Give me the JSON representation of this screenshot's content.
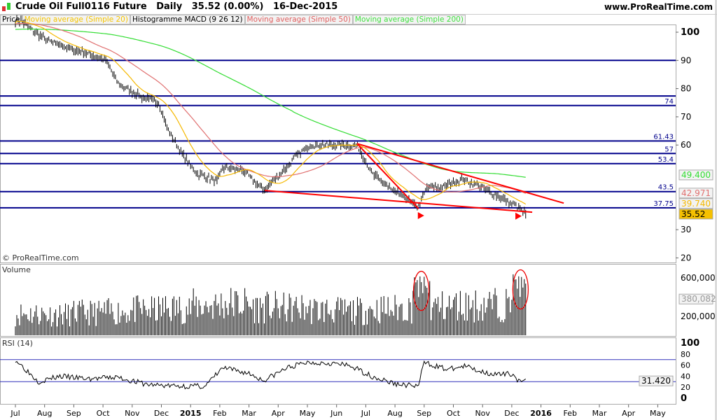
{
  "header": {
    "title": "Crude Oil Full0116 Future",
    "period": "Daily",
    "price": "35.52 (0.00%)",
    "date": "16-Dec-2015",
    "site": "www.ProRealTime.com"
  },
  "legend": [
    {
      "label": "Price",
      "color": "#000000"
    },
    {
      "label": "Moving average (Simple 20)",
      "color": "#f5c400"
    },
    {
      "label": "Histogramme MACD (9 26 12)",
      "color": "#000000"
    },
    {
      "label": "Moving average (Simple 50)",
      "color": "#e06060"
    },
    {
      "label": "Moving average (Simple 200)",
      "color": "#40e040"
    }
  ],
  "copyright": "© ProRealTime.com",
  "panels": {
    "volume": "Volume",
    "rsi": "RSI (14)"
  },
  "chart_data": [
    {
      "type": "line",
      "name": "price",
      "title": "Crude Oil Full0116 Future Daily",
      "x_unit": "months since Jul 2014",
      "x": [
        0.2,
        0.4,
        1.1,
        1.9,
        2.6,
        3.1,
        3.5,
        4.3,
        4.9,
        5.2,
        5.7,
        6.2,
        6.9,
        7.1,
        7.8,
        8.5,
        9.1,
        9.6,
        10.1,
        10.8,
        11.7,
        12.2,
        12.9,
        13.8,
        14.1,
        14.6,
        15.3,
        15.8,
        16.3,
        16.7,
        17.2,
        17.5
      ],
      "y": [
        104,
        102,
        97,
        94,
        92,
        90,
        82,
        77,
        75,
        66,
        57,
        50,
        47,
        52,
        51,
        44,
        50,
        56,
        60,
        60,
        60,
        50,
        44,
        38,
        45,
        45,
        48,
        46,
        43,
        41,
        38,
        35.52
      ],
      "yticks": [
        20,
        30,
        60,
        70,
        80,
        90,
        100
      ],
      "ylim": [
        17,
        106
      ],
      "hlines": [
        {
          "value": 90,
          "label": ""
        },
        {
          "value": 77.4,
          "label": ""
        },
        {
          "value": 74,
          "label": "74"
        },
        {
          "value": 61.43,
          "label": "61.43"
        },
        {
          "value": 57,
          "label": "57"
        },
        {
          "value": 53.4,
          "label": "53.4"
        },
        {
          "value": 43.5,
          "label": "43.5"
        },
        {
          "value": 37.75,
          "label": "37.75"
        }
      ],
      "trendlines": [
        [
          [
            11.7,
            60.5
          ],
          [
            18.78,
            39.4
          ]
        ],
        [
          [
            8.54,
            43.9
          ],
          [
            17.7,
            36.2
          ]
        ],
        [
          [
            11.7,
            60.5
          ],
          [
            13.81,
            37.4
          ]
        ]
      ],
      "arrows": [
        [
          13.88,
          35.0
        ],
        [
          17.22,
          34.8
        ]
      ],
      "last_values": {
        "ma200": "49.400",
        "ma50": "42.971",
        "ma20": "39.740",
        "price": "35.52"
      }
    },
    {
      "type": "bar",
      "name": "volume",
      "monthly_avg": [
        240000,
        230000,
        250000,
        260000,
        280000,
        300000,
        330000,
        350000,
        310000,
        300000,
        280000,
        270000,
        290000,
        300000,
        320000,
        330000,
        340000,
        360000
      ],
      "spikes": [
        {
          "x": 13.9,
          "value": 620000
        },
        {
          "x": 17.3,
          "value": 640000
        }
      ],
      "yticks": [
        "200,000",
        "600,000"
      ],
      "last": "380,082",
      "ylim": [
        0,
        720000
      ]
    },
    {
      "type": "line",
      "name": "rsi",
      "x": [
        0,
        0.8,
        1.5,
        2.5,
        3.5,
        4.5,
        5.5,
        6.5,
        7.1,
        8,
        8.5,
        9.3,
        10,
        10.8,
        11.5,
        12.2,
        13,
        13.8,
        14,
        14.8,
        15.4,
        16,
        16.6,
        17,
        17.3,
        17.5
      ],
      "y": [
        70,
        30,
        40,
        35,
        38,
        25,
        22,
        22,
        55,
        45,
        32,
        55,
        65,
        64,
        58,
        40,
        26,
        22,
        65,
        52,
        58,
        48,
        42,
        45,
        28,
        31.42
      ],
      "yticks": [
        "0",
        "20",
        "40",
        "60",
        "80",
        "100"
      ],
      "levels": [
        70,
        30
      ],
      "last": "31.420",
      "ylim": [
        0,
        100
      ]
    },
    {
      "type": "axis",
      "xticks": [
        "Jul",
        "Aug",
        "Sep",
        "Oct",
        "Nov",
        "Dec",
        "2015",
        "Feb",
        "Mar",
        "Apr",
        "May",
        "Jun",
        "Jul",
        "Aug",
        "Sep",
        "Oct",
        "Nov",
        "Dec",
        "2016",
        "Feb",
        "Mar",
        "Apr",
        "May"
      ]
    }
  ]
}
